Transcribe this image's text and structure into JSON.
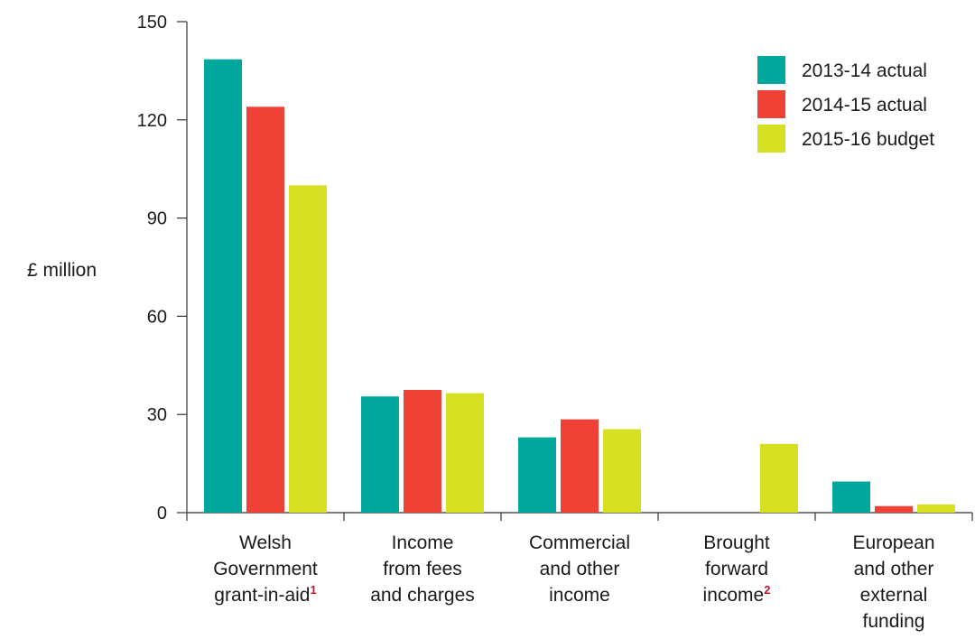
{
  "chart_data": {
    "type": "bar",
    "ylabel": "£ million",
    "ylim": [
      0,
      150
    ],
    "yticks": [
      0,
      30,
      60,
      90,
      120,
      150
    ],
    "categories": [
      {
        "lines": [
          "Welsh",
          "Government",
          "grant-in-aid"
        ],
        "footnote": "1"
      },
      {
        "lines": [
          "Income",
          "from fees",
          "and charges"
        ],
        "footnote": ""
      },
      {
        "lines": [
          "Commercial",
          "and other",
          "income"
        ],
        "footnote": ""
      },
      {
        "lines": [
          "Brought",
          "forward",
          "income"
        ],
        "footnote": "2"
      },
      {
        "lines": [
          "European",
          "and other",
          "external",
          "funding"
        ],
        "footnote": ""
      }
    ],
    "series": [
      {
        "name": "2013-14 actual",
        "color": "#00a79d",
        "values": [
          138.5,
          35.5,
          23,
          0,
          9.5
        ]
      },
      {
        "name": "2014-15 actual",
        "color": "#ef4136",
        "values": [
          124,
          37.5,
          28.5,
          0,
          2
        ]
      },
      {
        "name": "2015-16 budget",
        "color": "#d7df23",
        "values": [
          100,
          36.5,
          25.5,
          21,
          2.5
        ]
      }
    ],
    "legend_position": "top-right",
    "grid": false
  }
}
